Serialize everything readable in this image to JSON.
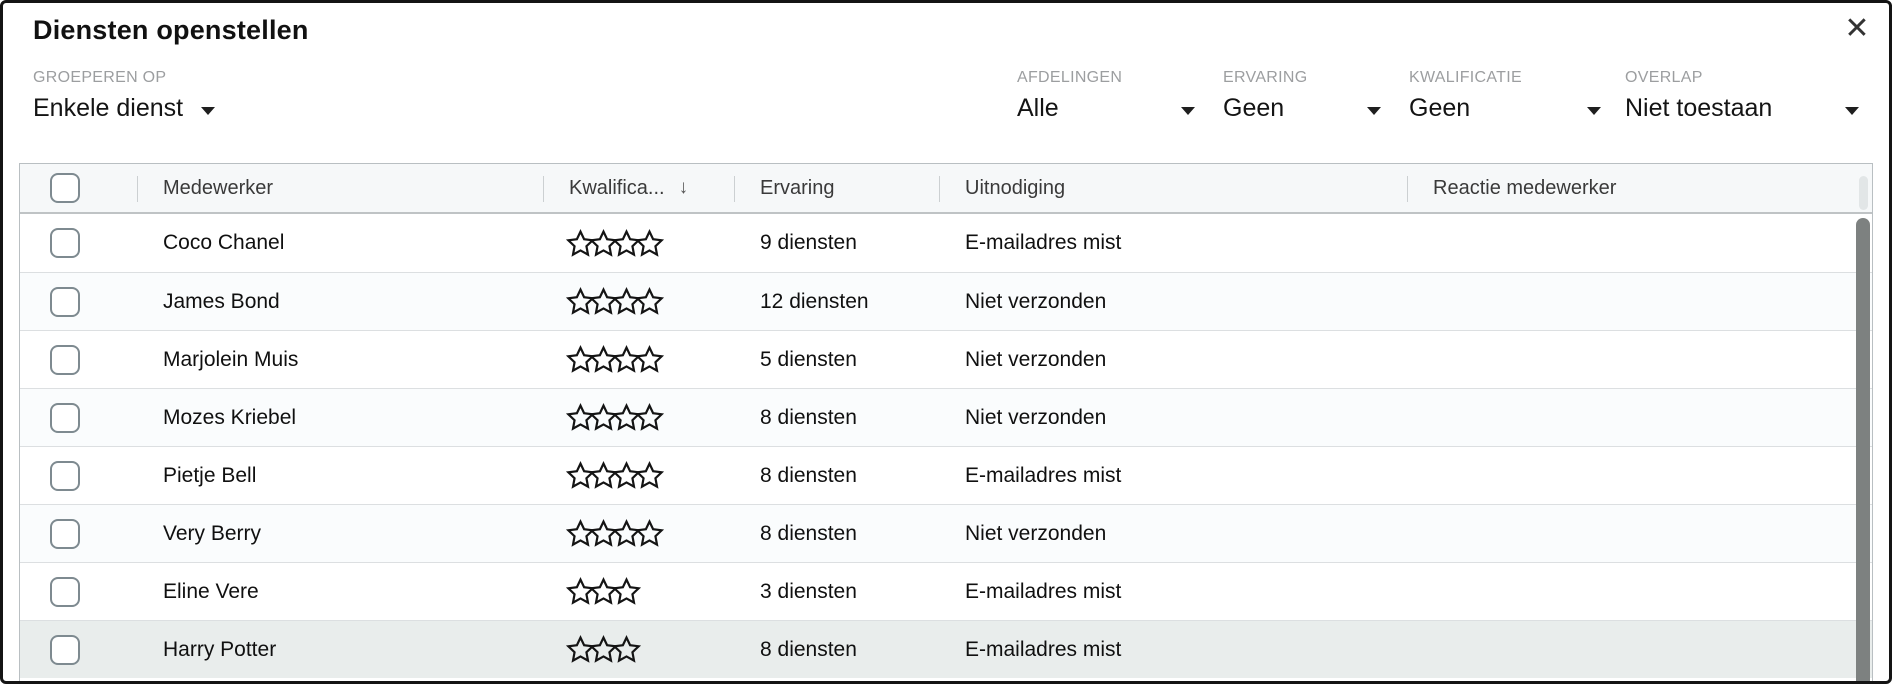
{
  "modal": {
    "title": "Diensten openstellen",
    "close_label": "✕"
  },
  "filters": {
    "group_by": {
      "label": "GROEPEREN OP",
      "value": "Enkele dienst"
    },
    "right": [
      {
        "id": "afdelingen",
        "label": "AFDELINGEN",
        "value": "Alle"
      },
      {
        "id": "ervaring",
        "label": "ERVARING",
        "value": "Geen"
      },
      {
        "id": "kwalificatie",
        "label": "KWALIFICATIE",
        "value": "Geen"
      },
      {
        "id": "overlap",
        "label": "OVERLAP",
        "value": "Niet toestaan"
      }
    ]
  },
  "table": {
    "columns": [
      {
        "key": "select",
        "label": ""
      },
      {
        "key": "medewerker",
        "label": "Medewerker"
      },
      {
        "key": "kwalificatie",
        "label": "Kwalifica...",
        "sort_arrow": "↓"
      },
      {
        "key": "ervaring",
        "label": "Ervaring"
      },
      {
        "key": "uitnodiging",
        "label": "Uitnodiging"
      },
      {
        "key": "reactie",
        "label": "Reactie medewerker"
      }
    ],
    "sort": {
      "column": "kwalificatie",
      "direction": "desc"
    },
    "rows": [
      {
        "name": "Coco Chanel",
        "stars": 4,
        "ervaring": "9 diensten",
        "uitnodiging": "E-mailadres mist",
        "reactie": "",
        "highlighted": false
      },
      {
        "name": "James Bond",
        "stars": 4,
        "ervaring": "12 diensten",
        "uitnodiging": "Niet verzonden",
        "reactie": "",
        "highlighted": false
      },
      {
        "name": "Marjolein Muis",
        "stars": 4,
        "ervaring": "5 diensten",
        "uitnodiging": "Niet verzonden",
        "reactie": "",
        "highlighted": false
      },
      {
        "name": "Mozes Kriebel",
        "stars": 4,
        "ervaring": "8 diensten",
        "uitnodiging": "Niet verzonden",
        "reactie": "",
        "highlighted": false
      },
      {
        "name": "Pietje Bell",
        "stars": 4,
        "ervaring": "8 diensten",
        "uitnodiging": "E-mailadres mist",
        "reactie": "",
        "highlighted": false
      },
      {
        "name": "Very Berry",
        "stars": 4,
        "ervaring": "8 diensten",
        "uitnodiging": "Niet verzonden",
        "reactie": "",
        "highlighted": false
      },
      {
        "name": "Eline Vere",
        "stars": 3,
        "ervaring": "3 diensten",
        "uitnodiging": "E-mailadres mist",
        "reactie": "",
        "highlighted": false
      },
      {
        "name": "Harry Potter",
        "stars": 3,
        "ervaring": "8 diensten",
        "uitnodiging": "E-mailadres mist",
        "reactie": "",
        "highlighted": true
      }
    ]
  },
  "colors": {
    "highlight_row": "#e9edec",
    "even_row": "#fafcfd",
    "header_bg": "#f6f8f9",
    "scrollbar_thumb": "#7d8180",
    "border_dark": "#141414"
  }
}
